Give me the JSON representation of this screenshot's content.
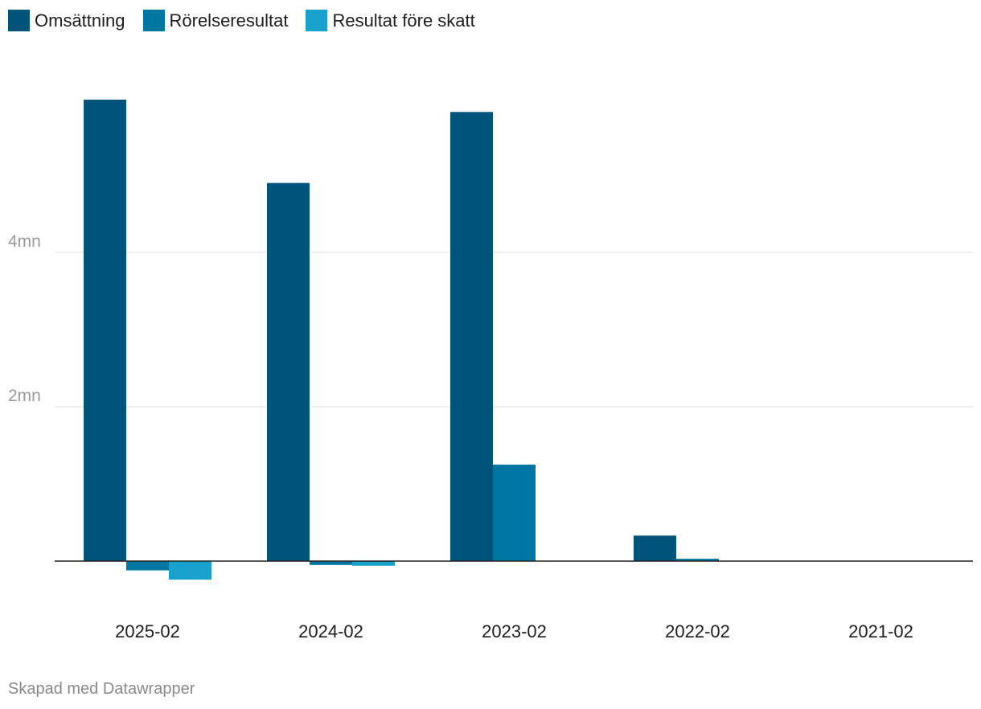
{
  "chart_data": {
    "type": "bar",
    "categories": [
      "2025-02",
      "2024-02",
      "2023-02",
      "2022-02",
      "2021-02"
    ],
    "series": [
      {
        "name": "Omsättning",
        "color": "#00537a",
        "values": [
          5.98,
          4.9,
          5.82,
          0.33,
          0
        ]
      },
      {
        "name": "Rörelseresultat",
        "color": "#0076a3",
        "values": [
          -0.12,
          -0.05,
          1.25,
          0.03,
          0
        ]
      },
      {
        "name": "Resultat före skatt",
        "color": "#18a1cd",
        "values": [
          -0.24,
          -0.06,
          0,
          0,
          0
        ]
      }
    ],
    "yticks": [
      {
        "value": 2,
        "label": "2mn"
      },
      {
        "value": 4,
        "label": "4mn"
      }
    ],
    "ylim": [
      -0.6,
      6.5
    ],
    "grid": true,
    "legend_position": "top-left"
  },
  "footer": "Skapad med Datawrapper"
}
